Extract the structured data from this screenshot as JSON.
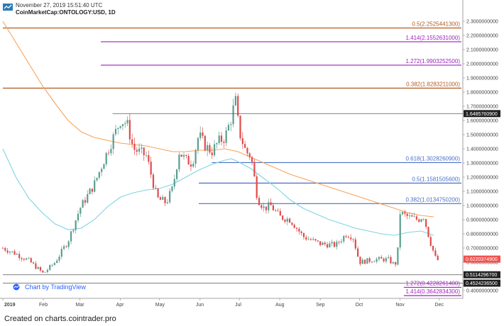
{
  "header": {
    "timestamp": "November 27, 2019 15:51:40 UTC",
    "source_line": "CoinMarketCap:ONTOLOGY:USD, 1D"
  },
  "tv_link": "Chart by TradingView",
  "footer": "Created on charts.cointrader.pro",
  "colors": {
    "orange": "#f7a35c",
    "ma_blue": "#7fd4e0",
    "fib_purple": "#a020c0",
    "fib_brown": "#b35a1f",
    "fib_blue": "#4a6fc7",
    "candle_up": "#5a9e8e",
    "candle_down": "#e04b4b",
    "current_price": "#ef5350"
  },
  "chart_data": {
    "type": "candlestick",
    "y_axis": {
      "min": 0.4,
      "max": 2.3,
      "ticks": [
        "2.3000000000",
        "2.2000000000",
        "2.1000000000",
        "2.0000000000",
        "1.9000000000",
        "1.8000000000",
        "1.7000000000",
        "1.6000000000",
        "1.5000000000",
        "1.4000000000",
        "1.3000000000",
        "1.2000000000",
        "1.1000000000",
        "1.0000000000",
        "0.9000000000",
        "0.8000000000",
        "0.7000000000",
        "0.6000000000",
        "0.5000000000",
        "0.4000000000"
      ]
    },
    "x_axis": {
      "labels": [
        "2019",
        "Feb",
        "Mar",
        "Apr",
        "May",
        "Jun",
        "Jul",
        "Aug",
        "Sep",
        "Oct",
        "Nov",
        "Dec"
      ],
      "label_days": [
        0,
        31,
        59,
        90,
        120,
        151,
        181,
        212,
        243,
        273,
        304,
        334
      ]
    },
    "fib_levels": [
      {
        "label": "0.5(2.2525441300)",
        "value": 2.2525,
        "color": "#b35a1f",
        "x_start_day": 0
      },
      {
        "label": "1.414(2.1552631000)",
        "value": 2.1553,
        "color": "#a020c0",
        "x_start_day": 75
      },
      {
        "label": "1.272(1.9903252500)",
        "value": 1.9903,
        "color": "#a020c0",
        "x_start_day": 75
      },
      {
        "label": "0.382(1.8283211000)",
        "value": 1.8283,
        "color": "#b35a1f",
        "x_start_day": 0
      },
      {
        "label": "0.618(1.3028260900)",
        "value": 1.3028,
        "color": "#4a6fc7",
        "x_start_day": 160
      },
      {
        "label": "0.5(1.1581505600)",
        "value": 1.1582,
        "color": "#4a6fc7",
        "x_start_day": 150
      },
      {
        "label": "0.382(1.0134750200)",
        "value": 1.0135,
        "color": "#4a6fc7",
        "x_start_day": 150
      },
      {
        "label": "1.272(0.4228261400)",
        "value": 0.4228,
        "color": "#a020c0",
        "x_start_day": 307
      },
      {
        "label": "1.414(0.3642834300)",
        "value": 0.3643,
        "color": "#a020c0",
        "x_start_day": 307
      }
    ],
    "price_tags": [
      {
        "label": "1.6485760900",
        "value": 1.6486,
        "color": "#222222",
        "line_start_day": 84
      },
      {
        "label": "0.6220374900",
        "value": 0.622,
        "color": "#ef5350"
      },
      {
        "label": "0.5114296700",
        "value": 0.5114,
        "color": "#222222",
        "line_start_day": 0
      },
      {
        "label": "0.4524236500",
        "value": 0.4524,
        "color": "#222222",
        "line_start_day": 0
      }
    ],
    "ma_orange": [
      [
        0,
        2.3
      ],
      [
        10,
        2.15
      ],
      [
        20,
        2.0
      ],
      [
        30,
        1.85
      ],
      [
        40,
        1.72
      ],
      [
        50,
        1.6
      ],
      [
        60,
        1.52
      ],
      [
        70,
        1.48
      ],
      [
        80,
        1.46
      ],
      [
        90,
        1.44
      ],
      [
        100,
        1.43
      ],
      [
        110,
        1.42
      ],
      [
        120,
        1.4
      ],
      [
        130,
        1.38
      ],
      [
        140,
        1.38
      ],
      [
        150,
        1.39
      ],
      [
        160,
        1.39
      ],
      [
        170,
        1.4
      ],
      [
        180,
        1.38
      ],
      [
        190,
        1.34
      ],
      [
        200,
        1.3
      ],
      [
        210,
        1.26
      ],
      [
        220,
        1.22
      ],
      [
        230,
        1.19
      ],
      [
        240,
        1.16
      ],
      [
        250,
        1.13
      ],
      [
        260,
        1.1
      ],
      [
        270,
        1.07
      ],
      [
        280,
        1.04
      ],
      [
        290,
        1.01
      ],
      [
        300,
        0.98
      ],
      [
        310,
        0.95
      ],
      [
        320,
        0.93
      ],
      [
        330,
        0.92
      ]
    ],
    "ma_blue": [
      [
        0,
        1.4
      ],
      [
        10,
        1.2
      ],
      [
        20,
        1.05
      ],
      [
        30,
        0.95
      ],
      [
        40,
        0.87
      ],
      [
        50,
        0.83
      ],
      [
        60,
        0.84
      ],
      [
        70,
        0.9
      ],
      [
        80,
        0.99
      ],
      [
        90,
        1.06
      ],
      [
        100,
        1.09
      ],
      [
        110,
        1.11
      ],
      [
        120,
        1.12
      ],
      [
        130,
        1.15
      ],
      [
        140,
        1.2
      ],
      [
        150,
        1.25
      ],
      [
        160,
        1.29
      ],
      [
        170,
        1.32
      ],
      [
        175,
        1.33
      ],
      [
        180,
        1.31
      ],
      [
        190,
        1.26
      ],
      [
        200,
        1.19
      ],
      [
        210,
        1.12
      ],
      [
        220,
        1.04
      ],
      [
        230,
        0.98
      ],
      [
        240,
        0.94
      ],
      [
        250,
        0.9
      ],
      [
        260,
        0.87
      ],
      [
        270,
        0.84
      ],
      [
        280,
        0.82
      ],
      [
        290,
        0.8
      ],
      [
        300,
        0.79
      ],
      [
        310,
        0.81
      ],
      [
        320,
        0.82
      ],
      [
        330,
        0.79
      ]
    ],
    "price_path": [
      [
        0,
        0.7
      ],
      [
        10,
        0.66
      ],
      [
        20,
        0.61
      ],
      [
        31,
        0.52
      ],
      [
        40,
        0.6
      ],
      [
        50,
        0.75
      ],
      [
        59,
        0.98
      ],
      [
        70,
        1.15
      ],
      [
        80,
        1.38
      ],
      [
        90,
        1.6
      ],
      [
        95,
        1.58
      ],
      [
        100,
        1.4
      ],
      [
        110,
        1.35
      ],
      [
        118,
        1.05
      ],
      [
        125,
        1.02
      ],
      [
        130,
        1.12
      ],
      [
        135,
        1.38
      ],
      [
        140,
        1.32
      ],
      [
        145,
        1.3
      ],
      [
        150,
        1.5
      ],
      [
        155,
        1.42
      ],
      [
        160,
        1.38
      ],
      [
        165,
        1.45
      ],
      [
        170,
        1.48
      ],
      [
        175,
        1.62
      ],
      [
        178,
        1.75
      ],
      [
        181,
        1.52
      ],
      [
        186,
        1.38
      ],
      [
        190,
        1.35
      ],
      [
        195,
        1.05
      ],
      [
        200,
        0.98
      ],
      [
        205,
        1.0
      ],
      [
        212,
        0.92
      ],
      [
        220,
        0.9
      ],
      [
        230,
        0.78
      ],
      [
        243,
        0.73
      ],
      [
        255,
        0.72
      ],
      [
        263,
        0.8
      ],
      [
        268,
        0.78
      ],
      [
        273,
        0.6
      ],
      [
        285,
        0.62
      ],
      [
        295,
        0.62
      ],
      [
        300,
        0.58
      ],
      [
        302,
        0.62
      ],
      [
        304,
        0.95
      ],
      [
        310,
        0.92
      ],
      [
        318,
        0.9
      ],
      [
        322,
        0.93
      ],
      [
        327,
        0.75
      ],
      [
        332,
        0.61
      ],
      [
        334,
        0.62
      ]
    ]
  }
}
